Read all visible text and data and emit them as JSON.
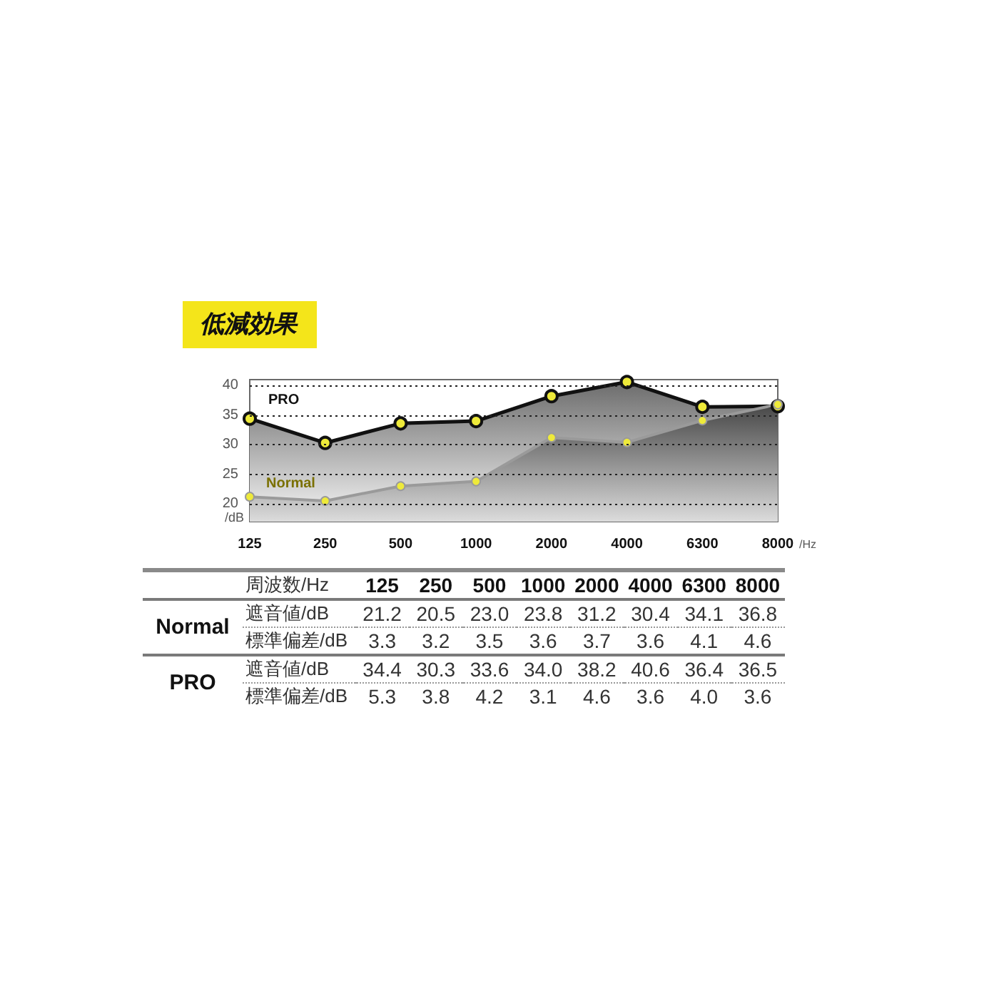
{
  "chart_data": [
    {
      "type": "area",
      "title": "低減効果",
      "xlabel": "/Hz",
      "ylabel": "/dB",
      "categories": [
        "125",
        "250",
        "500",
        "1000",
        "2000",
        "4000",
        "6300",
        "8000"
      ],
      "series": [
        {
          "name": "Normal",
          "color": "#9a9a9a",
          "values": [
            21.2,
            20.5,
            23.0,
            23.8,
            31.2,
            30.4,
            34.1,
            36.8
          ]
        },
        {
          "name": "PRO",
          "color": "#111111",
          "values": [
            34.4,
            30.3,
            33.6,
            34.0,
            38.2,
            40.6,
            36.4,
            36.5
          ]
        }
      ],
      "ylim": [
        17,
        41
      ],
      "yticks": [
        20,
        25,
        30,
        35,
        40
      ],
      "grid": "y",
      "marker": "circle",
      "line_style": "solid",
      "legend": "top left"
    },
    {
      "type": "other",
      "xlabel": "周波数/Hz",
      "categories": [
        "125",
        "250",
        "500",
        "1000",
        "2000",
        "4000",
        "6300",
        "8000"
      ],
      "y_categories": [
        "遮音値/dB",
        "標準偏差/dB",
        "遮音値/dB",
        "標準偏差/dB"
      ],
      "y2_categories": [
        "Normal",
        null,
        "PRO",
        null
      ],
      "cell_labels": [
        [
          "21.2",
          "20.5",
          "23.0",
          "23.8",
          "31.2",
          "30.4",
          "34.1",
          "36.8"
        ],
        [
          "3.3",
          "3.2",
          "3.5",
          "3.6",
          "3.7",
          "3.6",
          "4.1",
          "4.6"
        ],
        [
          "34.4",
          "30.3",
          "33.6",
          "34.0",
          "38.2",
          "40.6",
          "36.4",
          "36.5"
        ],
        [
          "5.3",
          "3.8",
          "4.2",
          "3.1",
          "4.6",
          "3.6",
          "4.0",
          "3.6"
        ]
      ]
    }
  ]
}
